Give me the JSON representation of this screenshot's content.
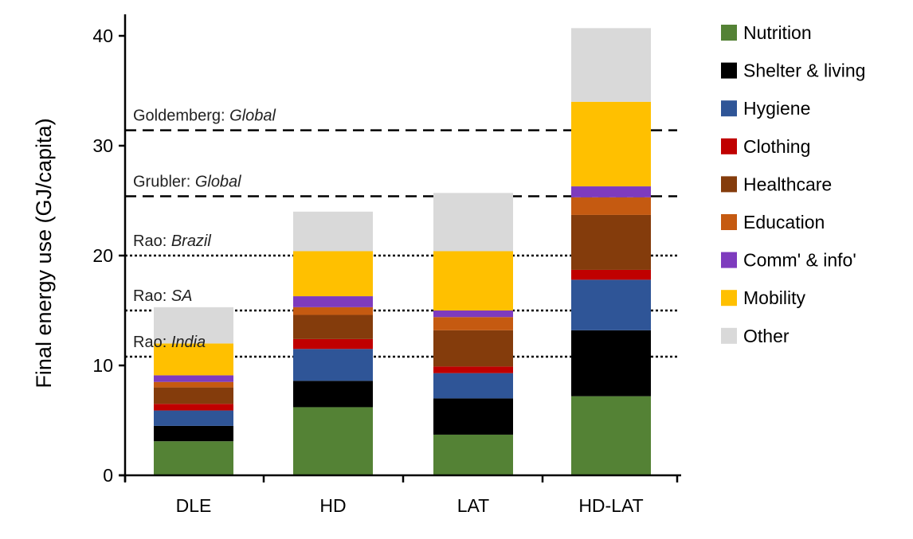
{
  "chart_data": {
    "type": "bar",
    "stacked": true,
    "title": "",
    "xlabel": "",
    "ylabel": "Final energy use (GJ/capita)",
    "ylim": [
      0,
      40
    ],
    "yticks": [
      "0",
      "10",
      "20",
      "30",
      "40"
    ],
    "ytick_values": [
      0,
      10,
      20,
      30,
      40
    ],
    "categories": [
      "DLE",
      "HD",
      "LAT",
      "HD-LAT"
    ],
    "legend_position": "right",
    "series": [
      {
        "name": "Nutrition",
        "color": "#548235",
        "values": [
          3.1,
          6.2,
          3.7,
          7.2
        ]
      },
      {
        "name": "Shelter & living",
        "color": "#000000",
        "values": [
          1.4,
          2.4,
          3.3,
          6.0
        ]
      },
      {
        "name": "Hygiene",
        "color": "#2F5597",
        "values": [
          1.4,
          2.9,
          2.3,
          4.6
        ]
      },
      {
        "name": "Clothing",
        "color": "#C00000",
        "values": [
          0.6,
          0.9,
          0.6,
          0.9
        ]
      },
      {
        "name": "Healthcare",
        "color": "#843C0C",
        "values": [
          1.5,
          2.2,
          3.3,
          5.0
        ]
      },
      {
        "name": "Education",
        "color": "#C55A11",
        "values": [
          0.5,
          0.7,
          1.2,
          1.6
        ]
      },
      {
        "name": "Comm' & info'",
        "color": "#7E3BBE",
        "values": [
          0.6,
          1.0,
          0.6,
          1.0
        ]
      },
      {
        "name": "Mobility",
        "color": "#FFC000",
        "values": [
          2.9,
          4.1,
          5.4,
          7.7
        ]
      },
      {
        "name": "Other",
        "color": "#D9D9D9",
        "values": [
          3.3,
          3.6,
          5.3,
          6.7
        ]
      }
    ],
    "reference_lines": [
      {
        "label": "Goldemberg: ",
        "label_italic": "Global",
        "value": 31.4,
        "style": "dashed"
      },
      {
        "label": "Grubler: ",
        "label_italic": "Global",
        "value": 25.4,
        "style": "dashed"
      },
      {
        "label": "Rao: ",
        "label_italic": "Brazil",
        "value": 20.0,
        "style": "dotted"
      },
      {
        "label": "Rao: ",
        "label_italic": "SA",
        "value": 15.0,
        "style": "dotted"
      },
      {
        "label": "Rao: ",
        "label_italic": "India",
        "value": 10.8,
        "style": "dotted"
      }
    ]
  }
}
